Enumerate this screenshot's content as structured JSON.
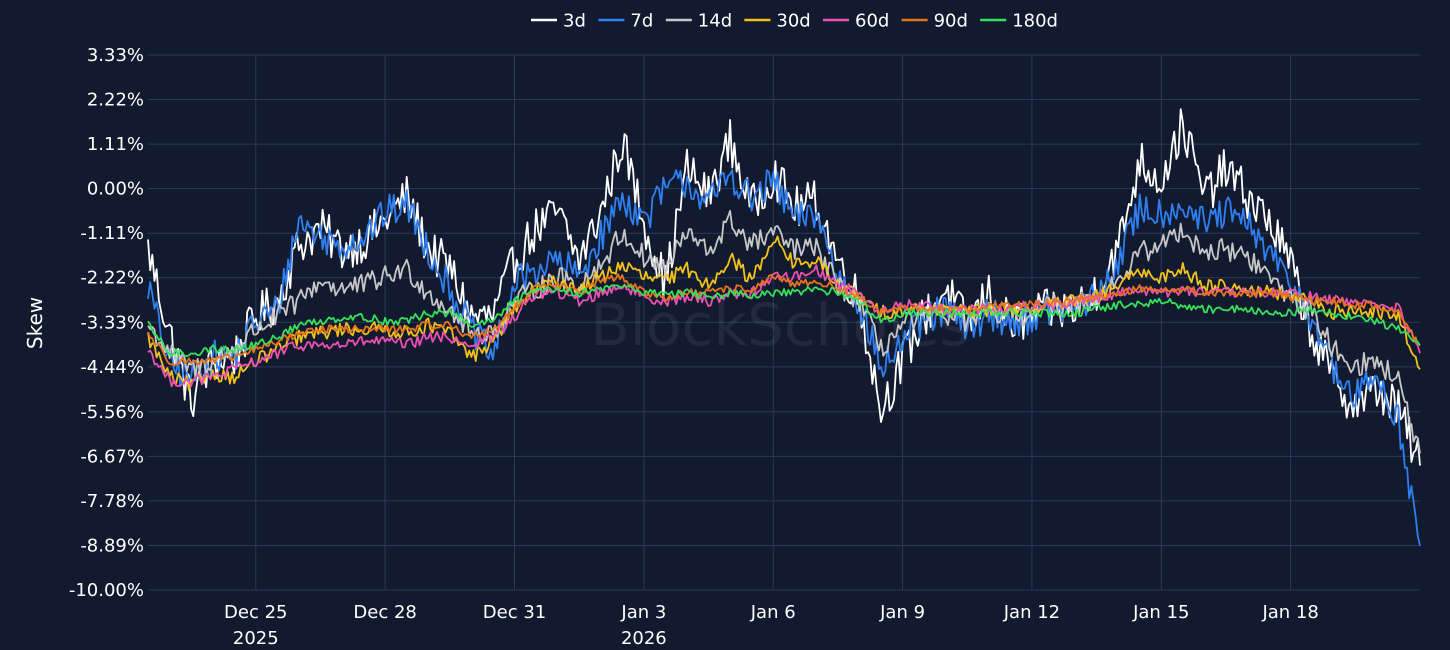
{
  "watermark": "BlockScholes",
  "chart_data": {
    "type": "line",
    "title": "",
    "xlabel": "",
    "ylabel": "Skew",
    "x_unit": "days since Dec 22, 2025",
    "xlim": [
      0,
      29.5
    ],
    "ylim": [
      -10.0,
      3.33
    ],
    "yticks": [
      {
        "value": 3.33,
        "label": "3.33%"
      },
      {
        "value": 2.22,
        "label": "2.22%"
      },
      {
        "value": 1.11,
        "label": "1.11%"
      },
      {
        "value": 0.0,
        "label": "0.00%"
      },
      {
        "value": -1.11,
        "label": "-1.11%"
      },
      {
        "value": -2.22,
        "label": "-2.22%"
      },
      {
        "value": -3.33,
        "label": "-3.33%"
      },
      {
        "value": -4.44,
        "label": "-4.44%"
      },
      {
        "value": -5.56,
        "label": "-5.56%"
      },
      {
        "value": -6.67,
        "label": "-6.67%"
      },
      {
        "value": -7.78,
        "label": "-7.78%"
      },
      {
        "value": -8.89,
        "label": "-8.89%"
      },
      {
        "value": -10.0,
        "label": "-10.00%"
      }
    ],
    "xticks": [
      {
        "value": 2.5,
        "label": "Dec 25",
        "sublabel": "2025"
      },
      {
        "value": 5.5,
        "label": "Dec 28",
        "sublabel": ""
      },
      {
        "value": 8.5,
        "label": "Dec 31",
        "sublabel": ""
      },
      {
        "value": 11.5,
        "label": "Jan 3",
        "sublabel": "2026"
      },
      {
        "value": 14.5,
        "label": "Jan 6",
        "sublabel": ""
      },
      {
        "value": 17.5,
        "label": "Jan 9",
        "sublabel": ""
      },
      {
        "value": 20.5,
        "label": "Jan 12",
        "sublabel": ""
      },
      {
        "value": 23.5,
        "label": "Jan 15",
        "sublabel": ""
      },
      {
        "value": 26.5,
        "label": "Jan 18",
        "sublabel": ""
      }
    ],
    "legend_position": "top-center",
    "grid": true,
    "series": [
      {
        "name": "3d",
        "color": "#ffffff",
        "x": [
          0,
          0.5,
          1,
          1.5,
          2,
          2.5,
          3,
          3.5,
          4,
          4.5,
          5,
          5.5,
          6,
          6.5,
          7,
          7.5,
          8,
          8.5,
          9,
          9.5,
          10,
          10.5,
          11,
          11.5,
          12,
          12.5,
          13,
          13.5,
          14,
          14.5,
          15,
          15.5,
          16,
          16.5,
          17,
          17.5,
          18,
          18.5,
          19,
          19.5,
          20,
          20.5,
          21,
          21.5,
          22,
          22.5,
          23,
          23.5,
          24,
          24.5,
          25,
          25.5,
          26,
          26.5,
          27,
          27.5,
          28,
          28.5,
          29,
          29.5
        ],
        "y": [
          -1.5,
          -3.6,
          -5.3,
          -4.3,
          -4.2,
          -3.2,
          -2.8,
          -1.4,
          -1.0,
          -1.5,
          -1.3,
          -0.8,
          -0.2,
          -1.5,
          -2.0,
          -3.2,
          -3.2,
          -1.8,
          -1.0,
          -0.6,
          -1.8,
          -0.6,
          1.2,
          -0.8,
          -2.4,
          0.5,
          -0.2,
          1.2,
          -0.5,
          0.4,
          -0.5,
          -0.3,
          -1.8,
          -2.8,
          -5.5,
          -4.3,
          -3.2,
          -2.5,
          -3.4,
          -2.6,
          -3.4,
          -3.2,
          -3.0,
          -3.0,
          -2.5,
          -1.5,
          0.7,
          0.2,
          1.6,
          -0.2,
          0.5,
          -0.2,
          -0.8,
          -1.9,
          -3.6,
          -4.8,
          -5.4,
          -5.0,
          -5.5,
          -6.9
        ]
      },
      {
        "name": "7d",
        "color": "#2f7ff0",
        "x": [
          0,
          0.5,
          1,
          1.5,
          2,
          2.5,
          3,
          3.5,
          4,
          4.5,
          5,
          5.5,
          6,
          6.5,
          7,
          7.5,
          8,
          8.5,
          9,
          9.5,
          10,
          10.5,
          11,
          11.5,
          12,
          12.5,
          13,
          13.5,
          14,
          14.5,
          15,
          15.5,
          16,
          16.5,
          17,
          17.5,
          18,
          18.5,
          19,
          19.5,
          20,
          20.5,
          21,
          21.5,
          22,
          22.5,
          23,
          23.5,
          24,
          24.5,
          25,
          25.5,
          26,
          26.5,
          27,
          27.5,
          28,
          28.5,
          29,
          29.5
        ],
        "y": [
          -2.4,
          -4.4,
          -4.7,
          -4.2,
          -4.2,
          -3.3,
          -3.0,
          -0.8,
          -1.2,
          -1.4,
          -1.2,
          -0.6,
          -0.4,
          -1.5,
          -2.5,
          -3.5,
          -4.2,
          -2.4,
          -2.0,
          -1.8,
          -2.2,
          -1.2,
          -0.2,
          -0.8,
          0.0,
          0.2,
          -0.4,
          0.4,
          -0.3,
          0.2,
          -0.8,
          -0.6,
          -2.2,
          -2.8,
          -4.5,
          -3.8,
          -3.3,
          -3.0,
          -3.5,
          -3.1,
          -3.3,
          -3.2,
          -3.0,
          -3.0,
          -2.7,
          -1.8,
          -0.5,
          -0.6,
          -0.4,
          -0.9,
          -0.6,
          -0.9,
          -1.6,
          -2.4,
          -3.2,
          -4.6,
          -5.2,
          -4.6,
          -5.8,
          -8.9
        ]
      },
      {
        "name": "14d",
        "color": "#c7c7c7",
        "x": [
          0,
          0.5,
          1,
          1.5,
          2,
          2.5,
          3,
          3.5,
          4,
          4.5,
          5,
          5.5,
          6,
          6.5,
          7,
          7.5,
          8,
          8.5,
          9,
          9.5,
          10,
          10.5,
          11,
          11.5,
          12,
          12.5,
          13,
          13.5,
          14,
          14.5,
          15,
          15.5,
          16,
          16.5,
          17,
          17.5,
          18,
          18.5,
          19,
          19.5,
          20,
          20.5,
          21,
          21.5,
          22,
          22.5,
          23,
          23.5,
          24,
          24.5,
          25,
          25.5,
          26,
          26.5,
          27,
          27.5,
          28,
          28.5,
          29,
          29.5
        ],
        "y": [
          -3.4,
          -4.1,
          -4.5,
          -4.3,
          -4.0,
          -3.5,
          -3.2,
          -2.8,
          -2.3,
          -2.5,
          -2.4,
          -2.2,
          -2.0,
          -2.6,
          -3.0,
          -3.6,
          -3.6,
          -2.8,
          -2.5,
          -2.2,
          -2.4,
          -1.9,
          -1.1,
          -1.7,
          -2.0,
          -1.1,
          -1.6,
          -0.8,
          -1.4,
          -1.1,
          -1.5,
          -1.5,
          -2.4,
          -2.8,
          -4.0,
          -3.4,
          -3.2,
          -3.1,
          -3.3,
          -3.1,
          -3.2,
          -3.1,
          -2.9,
          -2.9,
          -2.7,
          -2.3,
          -1.6,
          -1.4,
          -1.0,
          -1.6,
          -1.5,
          -1.7,
          -2.2,
          -2.7,
          -3.1,
          -4.0,
          -4.4,
          -4.3,
          -4.8,
          -6.6
        ]
      },
      {
        "name": "30d",
        "color": "#f2c21b",
        "x": [
          0,
          0.5,
          1,
          1.5,
          2,
          2.5,
          3,
          3.5,
          4,
          4.5,
          5,
          5.5,
          6,
          6.5,
          7,
          7.5,
          8,
          8.5,
          9,
          9.5,
          10,
          10.5,
          11,
          11.5,
          12,
          12.5,
          13,
          13.5,
          14,
          14.5,
          15,
          15.5,
          16,
          16.5,
          17,
          17.5,
          18,
          18.5,
          19,
          19.5,
          20,
          20.5,
          21,
          21.5,
          22,
          22.5,
          23,
          23.5,
          24,
          24.5,
          25,
          25.5,
          26,
          26.5,
          27,
          27.5,
          28,
          28.5,
          29,
          29.5
        ],
        "y": [
          -3.7,
          -4.7,
          -4.9,
          -4.6,
          -4.7,
          -4.3,
          -4.0,
          -3.7,
          -3.6,
          -3.5,
          -3.5,
          -3.5,
          -3.6,
          -3.4,
          -3.6,
          -4.2,
          -3.8,
          -3.0,
          -2.5,
          -2.3,
          -2.5,
          -2.2,
          -1.9,
          -2.2,
          -2.3,
          -2.0,
          -2.4,
          -1.7,
          -2.3,
          -1.2,
          -1.9,
          -1.8,
          -2.4,
          -2.7,
          -3.1,
          -3.0,
          -3.0,
          -3.0,
          -3.1,
          -3.0,
          -3.0,
          -3.0,
          -2.9,
          -2.8,
          -2.7,
          -2.4,
          -2.1,
          -2.2,
          -2.0,
          -2.4,
          -2.4,
          -2.5,
          -2.6,
          -2.7,
          -2.8,
          -3.1,
          -3.0,
          -3.1,
          -3.2,
          -4.5
        ]
      },
      {
        "name": "60d",
        "color": "#ee4fb0",
        "x": [
          0,
          0.5,
          1,
          1.5,
          2,
          2.5,
          3,
          3.5,
          4,
          4.5,
          5,
          5.5,
          6,
          6.5,
          7,
          7.5,
          8,
          8.5,
          9,
          9.5,
          10,
          10.5,
          11,
          11.5,
          12,
          12.5,
          13,
          13.5,
          14,
          14.5,
          15,
          15.5,
          16,
          16.5,
          17,
          17.5,
          18,
          18.5,
          19,
          19.5,
          20,
          20.5,
          21,
          21.5,
          22,
          22.5,
          23,
          23.5,
          24,
          24.5,
          25,
          25.5,
          26,
          26.5,
          27,
          27.5,
          28,
          28.5,
          29,
          29.5
        ],
        "y": [
          -4.0,
          -4.8,
          -4.8,
          -4.7,
          -4.5,
          -4.3,
          -4.1,
          -3.9,
          -3.9,
          -3.9,
          -3.8,
          -3.8,
          -3.9,
          -3.7,
          -3.7,
          -3.9,
          -3.7,
          -3.2,
          -2.6,
          -2.6,
          -2.8,
          -2.6,
          -2.4,
          -2.7,
          -2.8,
          -2.7,
          -2.8,
          -2.6,
          -2.6,
          -2.2,
          -2.2,
          -2.0,
          -2.4,
          -2.6,
          -3.1,
          -2.9,
          -2.9,
          -3.0,
          -3.0,
          -3.0,
          -3.0,
          -2.9,
          -2.9,
          -2.8,
          -2.7,
          -2.6,
          -2.5,
          -2.6,
          -2.5,
          -2.6,
          -2.6,
          -2.6,
          -2.6,
          -2.6,
          -2.7,
          -2.8,
          -2.8,
          -2.9,
          -3.0,
          -4.1
        ]
      },
      {
        "name": "90d",
        "color": "#e8741a",
        "x": [
          0,
          0.5,
          1,
          1.5,
          2,
          2.5,
          3,
          3.5,
          4,
          4.5,
          5,
          5.5,
          6,
          6.5,
          7,
          7.5,
          8,
          8.5,
          9,
          9.5,
          10,
          10.5,
          11,
          11.5,
          12,
          12.5,
          13,
          13.5,
          14,
          14.5,
          15,
          15.5,
          16,
          16.5,
          17,
          17.5,
          18,
          18.5,
          19,
          19.5,
          20,
          20.5,
          21,
          21.5,
          22,
          22.5,
          23,
          23.5,
          24,
          24.5,
          25,
          25.5,
          26,
          26.5,
          27,
          27.5,
          28,
          28.5,
          29,
          29.5
        ],
        "y": [
          -3.6,
          -4.3,
          -4.3,
          -4.3,
          -4.2,
          -4.0,
          -3.8,
          -3.6,
          -3.5,
          -3.5,
          -3.5,
          -3.5,
          -3.5,
          -3.4,
          -3.4,
          -3.7,
          -3.5,
          -3.0,
          -2.4,
          -2.4,
          -2.6,
          -2.3,
          -2.2,
          -2.6,
          -2.7,
          -2.6,
          -2.6,
          -2.5,
          -2.5,
          -2.2,
          -2.4,
          -2.3,
          -2.5,
          -2.7,
          -3.1,
          -3.0,
          -3.0,
          -3.0,
          -3.0,
          -2.9,
          -2.9,
          -2.9,
          -2.8,
          -2.8,
          -2.7,
          -2.6,
          -2.5,
          -2.5,
          -2.5,
          -2.6,
          -2.6,
          -2.6,
          -2.6,
          -2.7,
          -2.8,
          -2.8,
          -2.9,
          -2.9,
          -3.1,
          -3.9
        ]
      },
      {
        "name": "180d",
        "color": "#36e05a",
        "x": [
          0,
          0.5,
          1,
          1.5,
          2,
          2.5,
          3,
          3.5,
          4,
          4.5,
          5,
          5.5,
          6,
          6.5,
          7,
          7.5,
          8,
          8.5,
          9,
          9.5,
          10,
          10.5,
          11,
          11.5,
          12,
          12.5,
          13,
          13.5,
          14,
          14.5,
          15,
          15.5,
          16,
          16.5,
          17,
          17.5,
          18,
          18.5,
          19,
          19.5,
          20,
          20.5,
          21,
          21.5,
          22,
          22.5,
          23,
          23.5,
          24,
          24.5,
          25,
          25.5,
          26,
          26.5,
          27,
          27.5,
          28,
          28.5,
          29,
          29.5
        ],
        "y": [
          -3.4,
          -4.1,
          -4.1,
          -4.0,
          -4.0,
          -3.9,
          -3.7,
          -3.4,
          -3.3,
          -3.2,
          -3.2,
          -3.3,
          -3.3,
          -3.1,
          -3.1,
          -3.4,
          -3.3,
          -2.8,
          -2.5,
          -2.5,
          -2.6,
          -2.5,
          -2.4,
          -2.6,
          -2.6,
          -2.6,
          -2.7,
          -2.6,
          -2.7,
          -2.6,
          -2.6,
          -2.5,
          -2.6,
          -2.8,
          -3.3,
          -3.1,
          -3.1,
          -3.1,
          -3.1,
          -3.1,
          -3.1,
          -3.1,
          -3.1,
          -3.1,
          -3.0,
          -2.9,
          -2.9,
          -2.8,
          -2.9,
          -3.0,
          -3.0,
          -3.0,
          -3.1,
          -3.1,
          -3.0,
          -3.1,
          -3.2,
          -3.3,
          -3.5,
          -3.9
        ]
      }
    ]
  }
}
